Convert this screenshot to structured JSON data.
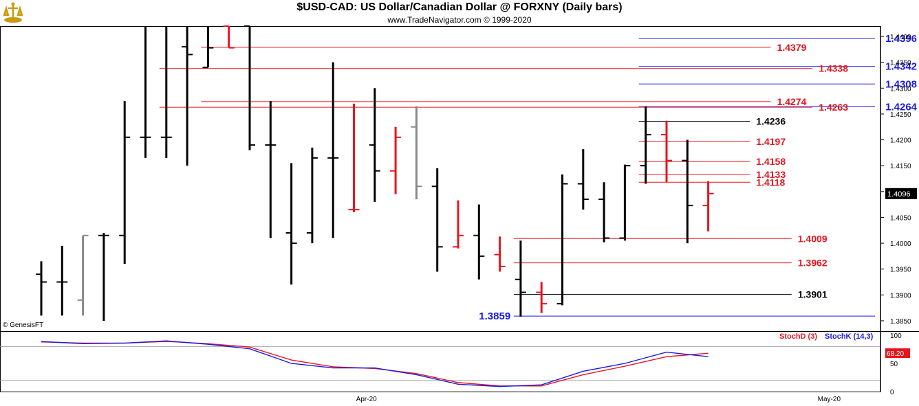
{
  "header": {
    "title": "$USD-CAD:  US Dollar/Canadian Dollar @ FORXNY  (Daily bars)",
    "subtitle": "www.TradeNavigator.com © 1999-2020",
    "credit": "© GenesisFT"
  },
  "chart_data": [
    {
      "type": "ohlc",
      "ylim": [
        1.383,
        1.442
      ],
      "y_ticks": [
        "1.4400",
        "1.4350",
        "1.4300",
        "1.4250",
        "1.4200",
        "1.4150",
        "1.4100",
        "1.4050",
        "1.4000",
        "1.3950",
        "1.3900",
        "1.3850"
      ],
      "y_tick_values": [
        1.44,
        1.435,
        1.43,
        1.425,
        1.42,
        1.415,
        1.41,
        1.405,
        1.4,
        1.395,
        1.39,
        1.385
      ],
      "x_labels": [
        {
          "label": "Apr-20",
          "index": 15.6
        },
        {
          "label": "May-20",
          "index": 37.8
        }
      ],
      "last_price": {
        "value": 1.4096,
        "label": "1.4096"
      },
      "colors": {
        "up": "#000000",
        "down": "#e8141e",
        "neutral": "#888888",
        "blue": "#1a1ae6",
        "red": "#e8141e"
      },
      "bars": [
        {
          "i": 0,
          "o": 1.394,
          "h": 1.3965,
          "l": 1.386,
          "c": 1.3925,
          "color": "black"
        },
        {
          "i": 1,
          "o": 1.3925,
          "h": 1.3995,
          "l": 1.386,
          "c": 1.3925,
          "color": "black"
        },
        {
          "i": 2,
          "o": 1.389,
          "h": 1.4015,
          "l": 1.386,
          "c": 1.4015,
          "color": "gray"
        },
        {
          "i": 3,
          "o": 1.4015,
          "h": 1.402,
          "l": 1.385,
          "c": 1.4015,
          "color": "black"
        },
        {
          "i": 4,
          "o": 1.4015,
          "h": 1.4275,
          "l": 1.396,
          "c": 1.4205,
          "color": "black"
        },
        {
          "i": 5,
          "o": 1.4205,
          "h": 1.442,
          "l": 1.4165,
          "c": 1.4205,
          "color": "black"
        },
        {
          "i": 6,
          "o": 1.4205,
          "h": 1.442,
          "l": 1.4165,
          "c": 1.4205,
          "color": "black"
        },
        {
          "i": 7,
          "o": 1.438,
          "h": 1.442,
          "l": 1.415,
          "c": 1.4365,
          "color": "black"
        },
        {
          "i": 8,
          "o": 1.434,
          "h": 1.442,
          "l": 1.434,
          "c": 1.4378,
          "color": "black"
        },
        {
          "i": 9,
          "o": 1.442,
          "h": 1.442,
          "l": 1.4378,
          "c": 1.4378,
          "color": "red"
        },
        {
          "i": 10,
          "o": 1.442,
          "h": 1.442,
          "l": 1.418,
          "c": 1.419,
          "color": "black"
        },
        {
          "i": 11,
          "o": 1.419,
          "h": 1.4275,
          "l": 1.401,
          "c": 1.419,
          "color": "black"
        },
        {
          "i": 12,
          "o": 1.402,
          "h": 1.4155,
          "l": 1.392,
          "c": 1.4,
          "color": "black"
        },
        {
          "i": 13,
          "o": 1.402,
          "h": 1.4185,
          "l": 1.4,
          "c": 1.4165,
          "color": "black"
        },
        {
          "i": 14,
          "o": 1.4165,
          "h": 1.435,
          "l": 1.401,
          "c": 1.4165,
          "color": "black"
        },
        {
          "i": 15,
          "o": 1.4065,
          "h": 1.427,
          "l": 1.406,
          "c": 1.4065,
          "color": "red"
        },
        {
          "i": 16,
          "o": 1.419,
          "h": 1.43,
          "l": 1.408,
          "c": 1.414,
          "color": "black"
        },
        {
          "i": 17,
          "o": 1.414,
          "h": 1.4225,
          "l": 1.4095,
          "c": 1.4205,
          "color": "red"
        },
        {
          "i": 18,
          "o": 1.4225,
          "h": 1.4265,
          "l": 1.4085,
          "c": 1.411,
          "color": "gray"
        },
        {
          "i": 19,
          "o": 1.411,
          "h": 1.4145,
          "l": 1.3945,
          "c": 1.3993,
          "color": "black"
        },
        {
          "i": 20,
          "o": 1.3993,
          "h": 1.4083,
          "l": 1.399,
          "c": 1.4015,
          "color": "red"
        },
        {
          "i": 21,
          "o": 1.4015,
          "h": 1.4075,
          "l": 1.393,
          "c": 1.3975,
          "color": "black"
        },
        {
          "i": 22,
          "o": 1.3978,
          "h": 1.4013,
          "l": 1.3945,
          "c": 1.3955,
          "color": "red"
        },
        {
          "i": 23,
          "o": 1.393,
          "h": 1.4005,
          "l": 1.3858,
          "c": 1.3905,
          "color": "black"
        },
        {
          "i": 24,
          "o": 1.3905,
          "h": 1.3925,
          "l": 1.3865,
          "c": 1.3883,
          "color": "red"
        },
        {
          "i": 25,
          "o": 1.3883,
          "h": 1.4133,
          "l": 1.388,
          "c": 1.4115,
          "color": "black"
        },
        {
          "i": 26,
          "o": 1.4115,
          "h": 1.4182,
          "l": 1.4065,
          "c": 1.4085,
          "color": "black"
        },
        {
          "i": 27,
          "o": 1.4085,
          "h": 1.4118,
          "l": 1.4002,
          "c": 1.401,
          "color": "black"
        },
        {
          "i": 28,
          "o": 1.401,
          "h": 1.4152,
          "l": 1.4005,
          "c": 1.415,
          "color": "black"
        },
        {
          "i": 29,
          "o": 1.415,
          "h": 1.4265,
          "l": 1.4115,
          "c": 1.421,
          "color": "black"
        },
        {
          "i": 30,
          "o": 1.421,
          "h": 1.4237,
          "l": 1.4118,
          "c": 1.416,
          "color": "red"
        },
        {
          "i": 31,
          "o": 1.416,
          "h": 1.42,
          "l": 1.4,
          "c": 1.4073,
          "color": "black"
        },
        {
          "i": 32,
          "o": 1.4073,
          "h": 1.412,
          "l": 1.4023,
          "c": 1.4096,
          "color": "red"
        }
      ],
      "levels": [
        {
          "value": 1.4396,
          "label": "1.4396",
          "color": "blue",
          "from": 29,
          "to": 40,
          "label_index": 40.5
        },
        {
          "value": 1.4379,
          "label": "1.4379",
          "color": "red",
          "from": 8,
          "to": 35,
          "label_index": 35.3
        },
        {
          "value": 1.4342,
          "label": "1.4342",
          "color": "blue",
          "from": 29,
          "to": 40,
          "label_index": 40.5
        },
        {
          "value": 1.4338,
          "label": "1.4338",
          "color": "red",
          "from": 6,
          "to": 37,
          "label_index": 37.3
        },
        {
          "value": 1.4308,
          "label": "1.4308",
          "color": "blue",
          "from": 29,
          "to": 40,
          "label_index": 40.5
        },
        {
          "value": 1.4274,
          "label": "1.4274",
          "color": "red",
          "from": 8,
          "to": 35,
          "label_index": 35.3
        },
        {
          "value": 1.4264,
          "label": "1.4264",
          "color": "blue",
          "from": 29,
          "to": 40,
          "label_index": 40.5
        },
        {
          "value": 1.4263,
          "label": "1.4263",
          "color": "red",
          "from": 6,
          "to": 37,
          "label_index": 37.3
        },
        {
          "value": 1.4236,
          "label": "1.4236",
          "color": "black",
          "from": 29,
          "to": 34,
          "label_index": 34.3
        },
        {
          "value": 1.4197,
          "label": "1.4197",
          "color": "red",
          "from": 29,
          "to": 34,
          "label_index": 34.3
        },
        {
          "value": 1.4158,
          "label": "1.4158",
          "color": "red",
          "from": 29,
          "to": 34,
          "label_index": 34.3
        },
        {
          "value": 1.4133,
          "label": "1.4133",
          "color": "red",
          "from": 29,
          "to": 34,
          "label_index": 34.3
        },
        {
          "value": 1.4118,
          "label": "1.4118",
          "color": "red",
          "from": 29,
          "to": 34,
          "label_index": 34.3
        },
        {
          "value": 1.4009,
          "label": "1.4009",
          "color": "red",
          "from": 23,
          "to": 36,
          "label_index": 36.3
        },
        {
          "value": 1.3962,
          "label": "1.3962",
          "color": "red",
          "from": 23,
          "to": 36,
          "label_index": 36.3
        },
        {
          "value": 1.3901,
          "label": "1.3901",
          "color": "black",
          "from": 23,
          "to": 36,
          "label_index": 36.3
        },
        {
          "value": 1.3859,
          "label": "1.3859",
          "color": "blue",
          "from": 23,
          "to": 40,
          "label_index": 21.0
        }
      ]
    },
    {
      "type": "line",
      "ylim": [
        0,
        100
      ],
      "y_ticks": [
        "100",
        "50",
        "0"
      ],
      "y_tick_values": [
        100,
        50,
        0
      ],
      "legend": [
        {
          "name": "StochD (3)",
          "color": "#e8141e"
        },
        {
          "name": "StochK (14,3)",
          "color": "#1a1ae6"
        }
      ],
      "last_value": {
        "value": 68.2,
        "label": "68.20"
      },
      "x": [
        0,
        2,
        4,
        6,
        8,
        10,
        12,
        14,
        16,
        18,
        20,
        22,
        24,
        26,
        28,
        30,
        32
      ],
      "series": [
        {
          "name": "StochD (3)",
          "color": "#e8141e",
          "values": [
            88,
            86,
            86,
            89,
            85,
            79,
            56,
            44,
            41,
            32,
            16,
            10,
            10,
            30,
            45,
            62,
            68
          ]
        },
        {
          "name": "StochK (14,3)",
          "color": "#1a1ae6",
          "values": [
            89,
            85,
            86,
            90,
            84,
            76,
            50,
            42,
            42,
            30,
            13,
            9,
            12,
            36,
            50,
            70,
            62
          ]
        }
      ]
    }
  ]
}
